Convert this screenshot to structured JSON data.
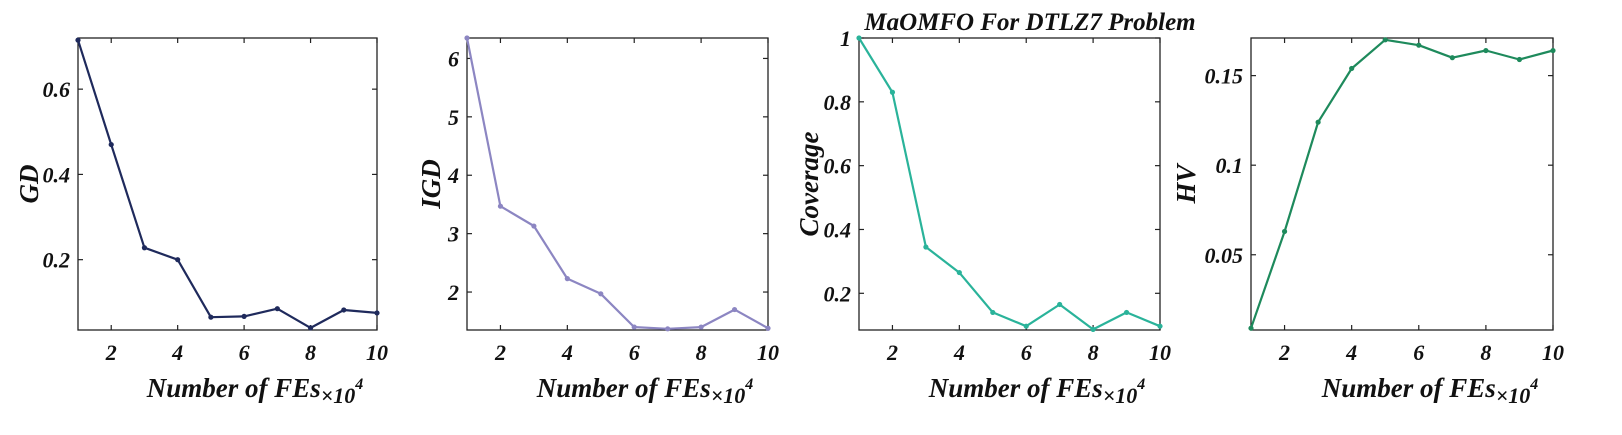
{
  "figure_title": "MaOMFO For DTLZ7 Problem",
  "chart_data": [
    {
      "type": "line",
      "title": "",
      "xlabel": "Number of FEs",
      "xlabel_suffix": "×10",
      "xlabel_exponent": "4",
      "ylabel": "GD",
      "xlim": [
        1,
        10
      ],
      "ylim": [
        0.035,
        0.72
      ],
      "xticks": [
        2,
        4,
        6,
        8,
        10
      ],
      "yticks": [
        0.2,
        0.4,
        0.6
      ],
      "ytick_labels": [
        "0.2",
        "0.4",
        "0.6"
      ],
      "grid": false,
      "legend": "none",
      "color": "#1f2a5c",
      "series": [
        {
          "x": [
            1,
            2,
            3,
            4,
            5,
            6,
            7,
            8,
            9,
            10
          ],
          "values": [
            0.715,
            0.47,
            0.228,
            0.2,
            0.065,
            0.067,
            0.085,
            0.04,
            0.082,
            0.075
          ]
        }
      ]
    },
    {
      "type": "line",
      "title": "",
      "xlabel": "Number of FEs",
      "xlabel_suffix": "×10",
      "xlabel_exponent": "4",
      "ylabel": "IGD",
      "xlim": [
        1,
        10
      ],
      "ylim": [
        1.35,
        6.35
      ],
      "xticks": [
        2,
        4,
        6,
        8,
        10
      ],
      "yticks": [
        2,
        3,
        4,
        5,
        6
      ],
      "ytick_labels": [
        "2",
        "3",
        "4",
        "5",
        "6"
      ],
      "grid": false,
      "legend": "none",
      "color": "#8c86c2",
      "series": [
        {
          "x": [
            1,
            2,
            3,
            4,
            5,
            6,
            7,
            8,
            9,
            10
          ],
          "values": [
            6.35,
            3.47,
            3.13,
            2.23,
            1.97,
            1.4,
            1.37,
            1.4,
            1.7,
            1.38
          ]
        }
      ]
    },
    {
      "type": "line",
      "title": "",
      "xlabel": "Number of FEs",
      "xlabel_suffix": "×10",
      "xlabel_exponent": "4",
      "ylabel": "Coverage",
      "xlim": [
        1,
        10
      ],
      "ylim": [
        0.085,
        1.0
      ],
      "xticks": [
        2,
        4,
        6,
        8,
        10
      ],
      "yticks": [
        0.2,
        0.4,
        0.6,
        0.8,
        1.0
      ],
      "ytick_labels": [
        "0.2",
        "0.4",
        "0.6",
        "0.8",
        "1"
      ],
      "grid": false,
      "legend": "none",
      "color": "#2ab39a",
      "series": [
        {
          "x": [
            1,
            2,
            3,
            4,
            5,
            6,
            7,
            8,
            9,
            10
          ],
          "values": [
            1.0,
            0.83,
            0.345,
            0.265,
            0.14,
            0.097,
            0.165,
            0.087,
            0.14,
            0.097
          ]
        }
      ]
    },
    {
      "type": "line",
      "title": "",
      "xlabel": "Number of FEs",
      "xlabel_suffix": "×10",
      "xlabel_exponent": "4",
      "ylabel": "HV",
      "xlim": [
        1,
        10
      ],
      "ylim": [
        0.008,
        0.171
      ],
      "xticks": [
        2,
        4,
        6,
        8,
        10
      ],
      "yticks": [
        0.05,
        0.1,
        0.15
      ],
      "ytick_labels": [
        "0.05",
        "0.1",
        "0.15"
      ],
      "grid": false,
      "legend": "none",
      "color": "#1e8a5c",
      "series": [
        {
          "x": [
            1,
            2,
            3,
            4,
            5,
            6,
            7,
            8,
            9,
            10
          ],
          "values": [
            0.009,
            0.063,
            0.124,
            0.154,
            0.17,
            0.167,
            0.16,
            0.164,
            0.159,
            0.164
          ]
        }
      ]
    }
  ]
}
